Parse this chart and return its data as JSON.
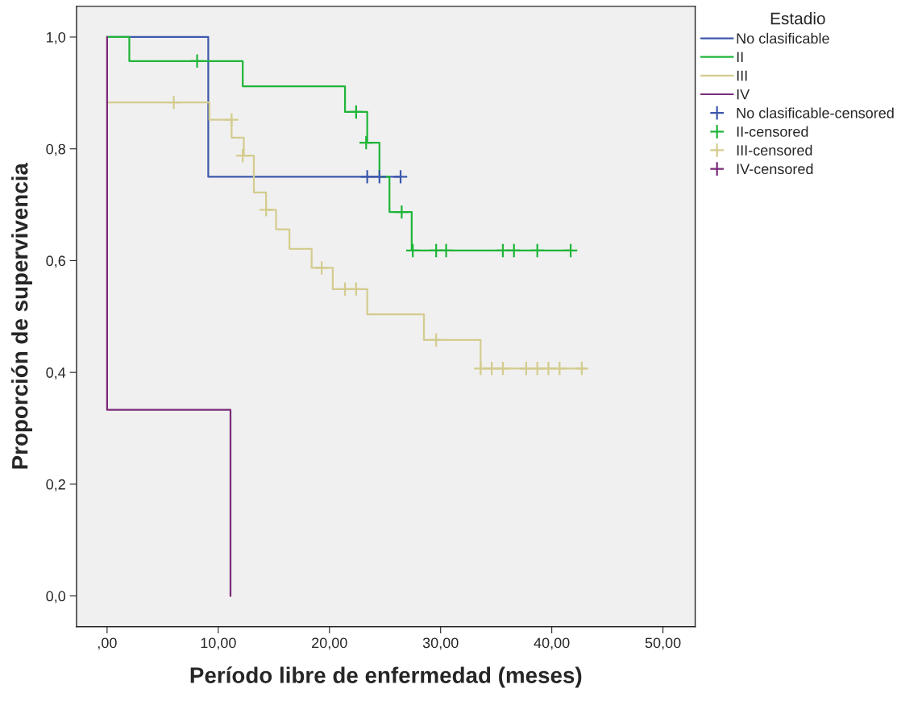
{
  "chart_data": {
    "type": "step",
    "xlabel": "Período libre de enfermedad (meses)",
    "ylabel": "Proporción de supervivencia",
    "legend_title": "Estadio",
    "xlim": [
      -2.75,
      52.9
    ],
    "ylim": [
      -0.055,
      1.055
    ],
    "xticks": [
      {
        "value": 0,
        "label": ",00"
      },
      {
        "value": 10,
        "label": "10,00"
      },
      {
        "value": 20,
        "label": "20,00"
      },
      {
        "value": 30,
        "label": "30,00"
      },
      {
        "value": 40,
        "label": "40,00"
      },
      {
        "value": 50,
        "label": "50,00"
      }
    ],
    "yticks": [
      {
        "value": 0,
        "label": "0,0"
      },
      {
        "value": 0.2,
        "label": "0,2"
      },
      {
        "value": 0.4,
        "label": "0,4"
      },
      {
        "value": 0.6,
        "label": "0,6"
      },
      {
        "value": 0.8,
        "label": "0,8"
      },
      {
        "value": 1.0,
        "label": "1,0"
      }
    ],
    "grid": false,
    "legend": "right",
    "series": [
      {
        "name": "No clasificable",
        "color": "#3e58ac",
        "x": [
          0,
          9.1,
          26.4
        ],
        "values": [
          1.0,
          0.75,
          0.75
        ]
      },
      {
        "name": "II",
        "color": "#1fb538",
        "x": [
          0,
          2.0,
          12.2,
          21.4,
          23.4,
          24.5,
          25.4,
          27.4,
          41.7
        ],
        "values": [
          1.0,
          0.957,
          0.912,
          0.866,
          0.811,
          0.75,
          0.687,
          0.618,
          0.618
        ]
      },
      {
        "name": "III",
        "color": "#d4cc8e",
        "x": [
          0,
          9.2,
          11.2,
          12.3,
          13.2,
          14.3,
          15.2,
          16.4,
          18.4,
          20.3,
          23.4,
          28.5,
          33.6,
          43.0
        ],
        "values": [
          0.883,
          0.852,
          0.82,
          0.788,
          0.722,
          0.691,
          0.656,
          0.621,
          0.587,
          0.549,
          0.504,
          0.458,
          0.407,
          0.407
        ]
      },
      {
        "name": "IV",
        "color": "#7a2a7a",
        "x": [
          0,
          0,
          11.1,
          11.1
        ],
        "values": [
          1.0,
          0.333,
          0.333,
          0.0
        ]
      },
      {
        "name": "No clasificable-censored",
        "type": "scatter",
        "marker": "cross",
        "color": "#3e58ac",
        "x": [
          23.4,
          24.5,
          26.4
        ],
        "values": [
          0.75,
          0.75,
          0.75
        ]
      },
      {
        "name": "II-censored",
        "type": "scatter",
        "marker": "cross",
        "color": "#1fb538",
        "x": [
          8.1,
          22.4,
          23.3,
          26.5,
          27.5,
          29.6,
          30.5,
          35.6,
          36.6,
          38.7,
          41.7
        ],
        "values": [
          0.957,
          0.866,
          0.811,
          0.687,
          0.618,
          0.618,
          0.618,
          0.618,
          0.618,
          0.618,
          0.618
        ]
      },
      {
        "name": "III-censored",
        "type": "scatter",
        "marker": "cross",
        "color": "#d4cc8e",
        "x": [
          6.0,
          11.2,
          12.2,
          14.3,
          19.3,
          21.4,
          22.4,
          29.6,
          33.6,
          34.6,
          35.6,
          37.7,
          38.7,
          39.7,
          40.7,
          42.7
        ],
        "values": [
          0.883,
          0.852,
          0.788,
          0.691,
          0.587,
          0.549,
          0.549,
          0.458,
          0.407,
          0.407,
          0.407,
          0.407,
          0.407,
          0.407,
          0.407,
          0.407
        ]
      },
      {
        "name": "IV-censored",
        "type": "scatter",
        "marker": "cross",
        "color": "#7a2a7a"
      }
    ]
  }
}
